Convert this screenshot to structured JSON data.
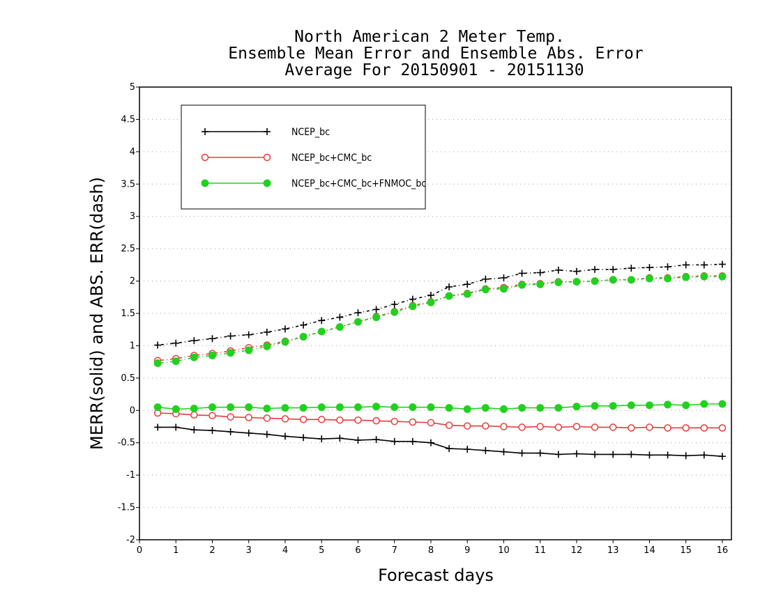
{
  "chart_data": {
    "type": "line",
    "title": [
      "North American 2 Meter Temp.",
      "Ensemble Mean Error and Ensemble Abs. Error",
      "Average For 20150901 - 20151130"
    ],
    "xlabel": "Forecast days",
    "ylabel": "MERR(solid) and ABS. ERR(dash)",
    "xlim": [
      0,
      16.25
    ],
    "ylim": [
      -2,
      5
    ],
    "xticks": [
      0,
      1,
      2,
      3,
      4,
      5,
      6,
      7,
      8,
      9,
      10,
      11,
      12,
      13,
      14,
      15,
      16
    ],
    "yticks": [
      -2,
      -1.5,
      -1,
      -0.5,
      0,
      0.5,
      1,
      1.5,
      2,
      2.5,
      3,
      3.5,
      4,
      4.5,
      5
    ],
    "ytick_labels": [
      "-2",
      "-1.5",
      "-1",
      "-0.5",
      "0",
      "0.5",
      "1",
      "1.5",
      "2",
      "2.5",
      "3",
      "3.5",
      "4",
      "4.5",
      "5"
    ],
    "grid": "horizontal dotted",
    "legend_position": "top-left",
    "x": [
      0.5,
      1,
      1.5,
      2,
      2.5,
      3,
      3.5,
      4,
      4.5,
      5,
      5.5,
      6,
      6.5,
      7,
      7.5,
      8,
      8.5,
      9,
      9.5,
      10,
      10.5,
      11,
      11.5,
      12,
      12.5,
      13,
      13.5,
      14,
      14.5,
      15,
      15.5,
      16
    ],
    "series": [
      {
        "name": "NCEP_bc",
        "color": "#000000",
        "marker": "plus",
        "merr": [
          -0.26,
          -0.26,
          -0.3,
          -0.31,
          -0.33,
          -0.35,
          -0.37,
          -0.4,
          -0.42,
          -0.44,
          -0.43,
          -0.46,
          -0.45,
          -0.48,
          -0.48,
          -0.5,
          -0.59,
          -0.6,
          -0.62,
          -0.64,
          -0.66,
          -0.66,
          -0.68,
          -0.67,
          -0.68,
          -0.68,
          -0.68,
          -0.69,
          -0.69,
          -0.7,
          -0.69,
          -0.71
        ],
        "abs_err": [
          1.01,
          1.04,
          1.08,
          1.11,
          1.15,
          1.17,
          1.21,
          1.26,
          1.32,
          1.39,
          1.44,
          1.51,
          1.56,
          1.64,
          1.72,
          1.78,
          1.91,
          1.95,
          2.03,
          2.05,
          2.12,
          2.13,
          2.17,
          2.15,
          2.18,
          2.18,
          2.2,
          2.21,
          2.22,
          2.25,
          2.25,
          2.26
        ]
      },
      {
        "name": "NCEP_bc+CMC_bc",
        "color": "#e83a3a",
        "marker": "open-circle",
        "merr": [
          -0.04,
          -0.05,
          -0.07,
          -0.08,
          -0.1,
          -0.11,
          -0.12,
          -0.13,
          -0.14,
          -0.14,
          -0.15,
          -0.15,
          -0.16,
          -0.17,
          -0.18,
          -0.19,
          -0.23,
          -0.24,
          -0.24,
          -0.25,
          -0.26,
          -0.25,
          -0.26,
          -0.25,
          -0.26,
          -0.26,
          -0.27,
          -0.26,
          -0.27,
          -0.27,
          -0.27,
          -0.27
        ],
        "abs_err": [
          0.77,
          0.8,
          0.85,
          0.88,
          0.92,
          0.97,
          1.01,
          1.07,
          1.14,
          1.22,
          1.29,
          1.37,
          1.45,
          1.53,
          1.62,
          1.68,
          1.77,
          1.81,
          1.88,
          1.9,
          1.95,
          1.96,
          1.99,
          1.99,
          2.0,
          2.02,
          2.02,
          2.05,
          2.05,
          2.07,
          2.08,
          2.08
        ]
      },
      {
        "name": "NCEP_bc+CMC_bc+FNMOC_bc",
        "color": "#22d11f",
        "marker": "filled-circle",
        "merr": [
          0.05,
          0.02,
          0.03,
          0.05,
          0.05,
          0.05,
          0.03,
          0.04,
          0.04,
          0.05,
          0.05,
          0.05,
          0.06,
          0.05,
          0.05,
          0.05,
          0.04,
          0.02,
          0.04,
          0.02,
          0.04,
          0.04,
          0.04,
          0.06,
          0.07,
          0.07,
          0.08,
          0.08,
          0.09,
          0.08,
          0.1,
          0.1
        ],
        "abs_err": [
          0.73,
          0.76,
          0.82,
          0.85,
          0.89,
          0.93,
          0.99,
          1.06,
          1.14,
          1.22,
          1.29,
          1.37,
          1.44,
          1.52,
          1.61,
          1.67,
          1.77,
          1.8,
          1.87,
          1.88,
          1.94,
          1.95,
          1.98,
          1.99,
          2.0,
          2.02,
          2.02,
          2.04,
          2.04,
          2.06,
          2.07,
          2.07
        ]
      }
    ]
  }
}
